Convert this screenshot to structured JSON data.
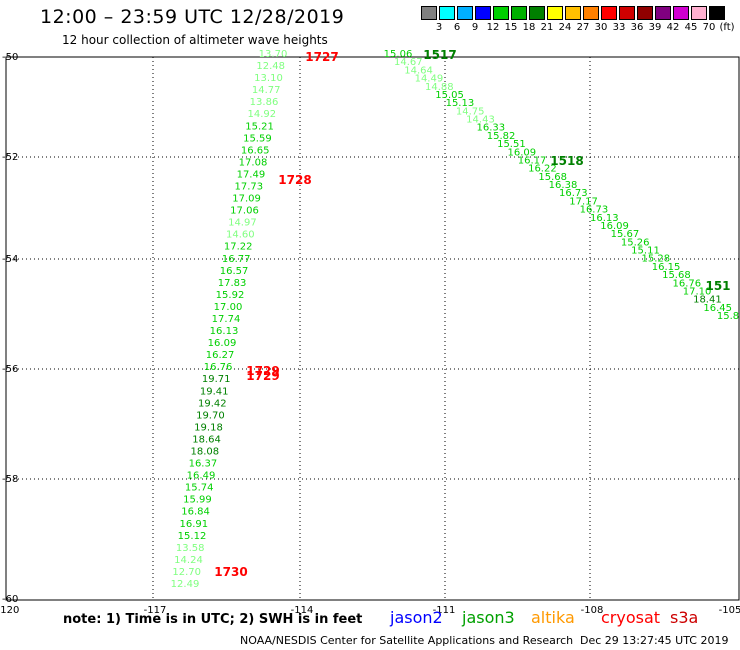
{
  "title": "12:00 – 23:59 UTC 12/28/2019",
  "subtitle": "12 hour collection of altimeter wave heights",
  "colorbar": {
    "colors": [
      "#808080",
      "#00ffff",
      "#00b0ff",
      "#0000ff",
      "#00d000",
      "#00b000",
      "#008000",
      "#ffff00",
      "#ffc000",
      "#ff8000",
      "#ff0000",
      "#d00000",
      "#900000",
      "#800080",
      "#d000d0",
      "#ffb0d0",
      "#000000"
    ],
    "labels": [
      "3",
      "6",
      "9",
      "12",
      "15",
      "18",
      "21",
      "24",
      "27",
      "30",
      "33",
      "36",
      "39",
      "42",
      "45",
      "70",
      "(ft)"
    ]
  },
  "axes": {
    "lon_labels": [
      "-120",
      "-117",
      "-114",
      "-111",
      "-108",
      "-105"
    ],
    "lat_labels": [
      "-50",
      "-52",
      "-54",
      "-56",
      "-58",
      "-60"
    ]
  },
  "track_colors": {
    "15-18": "#00d000",
    "12-15": "#80ff80",
    "18-21": "#008000"
  },
  "chart_data": {
    "type": "scatter",
    "xlabel": "",
    "ylabel": "",
    "xlim": [
      -120,
      -105
    ],
    "ylim": [
      -60,
      -50
    ],
    "west_track_swh": [
      13.7,
      12.48,
      13.1,
      14.77,
      13.86,
      14.92,
      15.21,
      15.59,
      16.65,
      17.08,
      17.49,
      17.73,
      17.09,
      17.06,
      14.97,
      14.6,
      17.22,
      16.77,
      16.57,
      17.83,
      15.92,
      17.0,
      17.74,
      16.13,
      16.09,
      16.27,
      16.76,
      19.71,
      19.41,
      19.42,
      19.7,
      19.18,
      18.64,
      18.08,
      16.37,
      16.49,
      15.74,
      15.99,
      16.84,
      16.91,
      15.12,
      13.58,
      14.24,
      12.7,
      12.49
    ],
    "east_track_swh": [
      15.06,
      14.67,
      14.64,
      14.49,
      14.88,
      15.05,
      15.13,
      14.75,
      14.43,
      16.33,
      15.82,
      15.51,
      16.09,
      16.17,
      16.22,
      15.68,
      16.38,
      16.73,
      17.17,
      16.73,
      16.13,
      16.09,
      15.67,
      15.26,
      15.11,
      15.28,
      16.15,
      15.68,
      16.76,
      17.1,
      18.41,
      16.45,
      15.8
    ],
    "time_labels": [
      {
        "text": "1727",
        "color": "#ff0000",
        "track": "west"
      },
      {
        "text": "1728",
        "color": "#ff0000",
        "track": "west"
      },
      {
        "text": "1729",
        "color": "#ff0000",
        "track": "west"
      },
      {
        "text": "1729",
        "color": "#ff0000",
        "track": "west"
      },
      {
        "text": "1730",
        "color": "#ff0000",
        "track": "west"
      },
      {
        "text": "1517",
        "color": "#008000",
        "track": "east"
      },
      {
        "text": "1518",
        "color": "#008000",
        "track": "east"
      },
      {
        "text": "151",
        "color": "#008000",
        "track": "east"
      }
    ]
  },
  "footer": {
    "note": "note: 1) Time is in UTC; 2) SWH is in feet",
    "satellites": [
      {
        "name": "jason2",
        "color": "#0000ff"
      },
      {
        "name": "jason3",
        "color": "#00a000"
      },
      {
        "name": "altika",
        "color": "#ff9900"
      },
      {
        "name": "cryosat",
        "color": "#ff0000"
      },
      {
        "name": "s3a",
        "color": "#cc0000"
      }
    ],
    "credit": "NOAA/NESDIS Center for Satellite Applications and Research",
    "date": "Dec 29 13:27:45 UTC 2019"
  }
}
